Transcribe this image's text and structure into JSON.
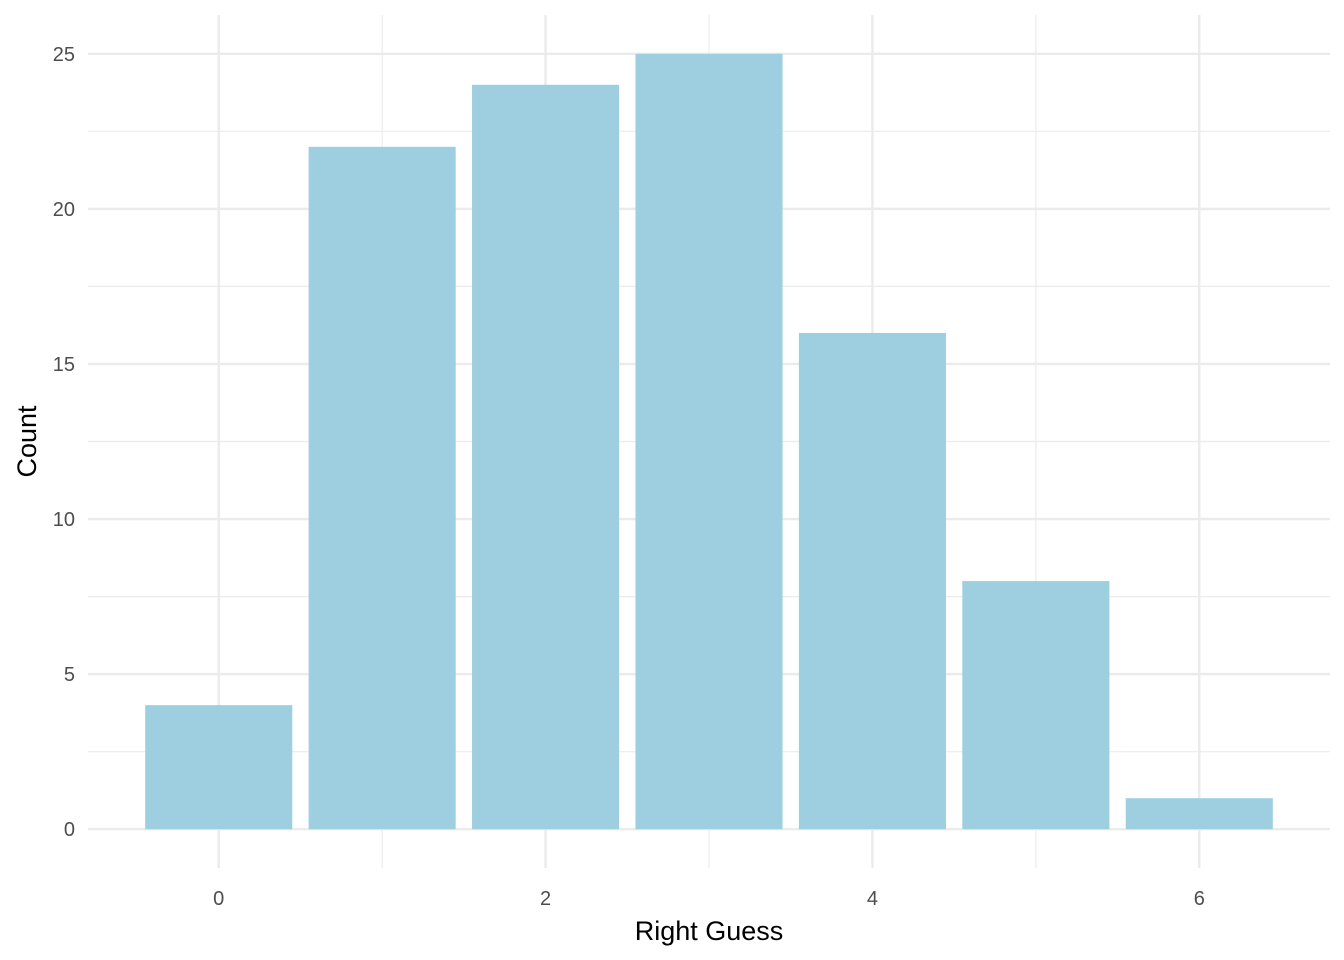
{
  "chart_data": {
    "type": "bar",
    "x": [
      0,
      1,
      2,
      3,
      4,
      5,
      6
    ],
    "values": [
      4,
      22,
      24,
      25,
      16,
      8,
      1
    ],
    "xlabel": "Right Guess",
    "ylabel": "Count",
    "title": "",
    "xlim": [
      -0.8,
      6.8
    ],
    "ylim": [
      -1.25,
      26.25
    ],
    "x_ticks": [
      0,
      2,
      4,
      6
    ],
    "y_ticks": [
      0,
      5,
      10,
      15,
      20,
      25
    ],
    "grid": true,
    "legend": "none",
    "colors": {
      "bar": "#9ecfe0",
      "grid": "#ebebeb",
      "background": "#ffffff"
    }
  }
}
